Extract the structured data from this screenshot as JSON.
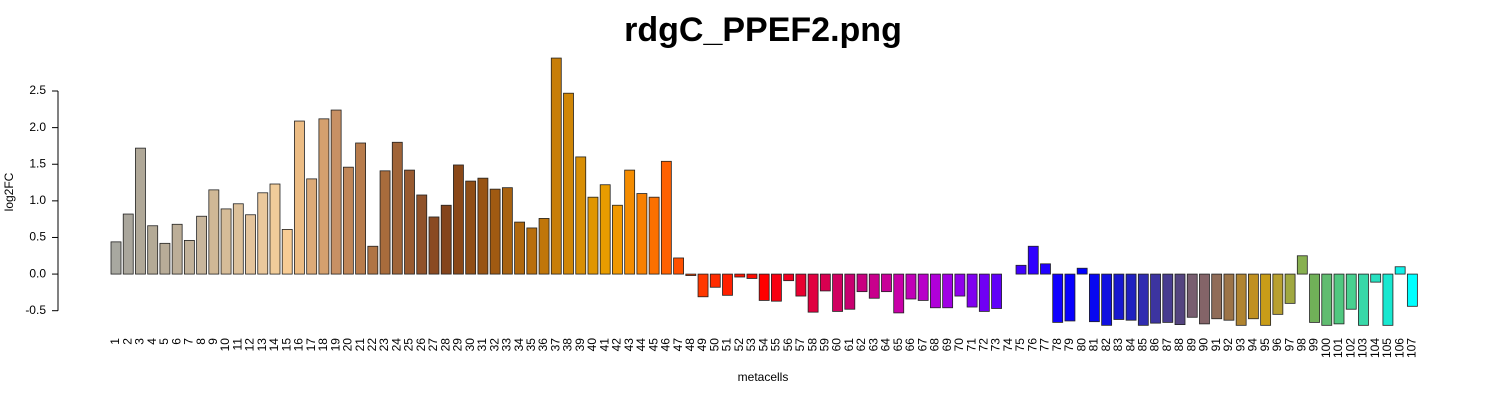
{
  "chart_data": {
    "type": "bar",
    "title": "rdgC_PPEF2.png",
    "y_label": "log2FC",
    "x_label": "metacells",
    "categories": [
      "1",
      "2",
      "3",
      "4",
      "5",
      "6",
      "7",
      "8",
      "9",
      "10",
      "11",
      "12",
      "13",
      "14",
      "15",
      "16",
      "17",
      "18",
      "19",
      "20",
      "21",
      "22",
      "23",
      "24",
      "25",
      "26",
      "27",
      "28",
      "29",
      "30",
      "31",
      "32",
      "33",
      "34",
      "35",
      "36",
      "37",
      "38",
      "39",
      "40",
      "41",
      "42",
      "43",
      "44",
      "45",
      "46",
      "47",
      "48",
      "49",
      "50",
      "51",
      "52",
      "53",
      "54",
      "55",
      "56",
      "57",
      "58",
      "59",
      "60",
      "61",
      "62",
      "63",
      "64",
      "65",
      "66",
      "67",
      "68",
      "69",
      "70",
      "71",
      "72",
      "73",
      "74",
      "75",
      "76",
      "77",
      "78",
      "79",
      "80",
      "81",
      "82",
      "83",
      "84",
      "85",
      "86",
      "87",
      "88",
      "89",
      "90",
      "91",
      "92",
      "93",
      "94",
      "95",
      "96",
      "97",
      "98",
      "99",
      "100",
      "101",
      "102",
      "103",
      "104",
      "105",
      "106",
      "107"
    ],
    "values": [
      0.44,
      0.82,
      1.72,
      0.66,
      0.42,
      0.68,
      0.46,
      0.79,
      1.15,
      0.89,
      0.96,
      0.81,
      1.11,
      1.23,
      0.61,
      2.09,
      1.3,
      2.12,
      2.24,
      1.46,
      1.79,
      0.38,
      1.41,
      1.8,
      1.42,
      1.08,
      0.78,
      0.94,
      1.49,
      1.27,
      1.31,
      1.16,
      1.18,
      0.71,
      0.63,
      0.76,
      2.95,
      2.47,
      1.6,
      1.05,
      1.22,
      0.94,
      1.42,
      1.1,
      1.05,
      1.54,
      0.22,
      -0.02,
      -0.31,
      -0.18,
      -0.29,
      -0.04,
      -0.06,
      -0.36,
      -0.37,
      -0.09,
      -0.3,
      -0.52,
      -0.23,
      -0.51,
      -0.48,
      -0.24,
      -0.33,
      -0.24,
      -0.53,
      -0.34,
      -0.36,
      -0.46,
      -0.46,
      -0.3,
      -0.45,
      -0.51,
      -0.47,
      0.0,
      0.12,
      0.38,
      0.14,
      -0.66,
      -0.64,
      0.08,
      -0.65,
      -0.7,
      -0.62,
      -0.63,
      -0.7,
      -0.67,
      -0.66,
      -0.69,
      -0.59,
      -0.68,
      -0.61,
      -0.63,
      -0.7,
      -0.61,
      -0.7,
      -0.55,
      -0.4,
      0.25,
      -0.66,
      -0.7,
      -0.68,
      -0.48,
      -0.7,
      -0.11,
      -0.7,
      0.1,
      -0.44
    ],
    "colors": [
      "#a8a8a0",
      "#aaa69c",
      "#b0a898",
      "#b4aa96",
      "#b8ac98",
      "#bcae98",
      "#c2b29a",
      "#c8b69c",
      "#d0b896",
      "#d6bc98",
      "#dcc09a",
      "#e4c49c",
      "#eac89c",
      "#f0cc9a",
      "#f8cc94",
      "#ecbc84",
      "#dcaa78",
      "#d4a06e",
      "#c89064",
      "#c08658",
      "#b87c4c",
      "#b07444",
      "#a86c3c",
      "#a06438",
      "#985a30",
      "#90522a",
      "#8a4a22",
      "#84441c",
      "#8a4818",
      "#904e16",
      "#985414",
      "#a05a12",
      "#a86210",
      "#b0680e",
      "#b86e0c",
      "#c0760a",
      "#c87e08",
      "#d08606",
      "#d88e04",
      "#e09602",
      "#e89c00",
      "#f09800",
      "#f48c00",
      "#f88000",
      "#fc7000",
      "#ff6000",
      "#ff5000",
      "#ff4400",
      "#ff3800",
      "#ff2c00",
      "#ff2000",
      "#ff1400",
      "#ff0a00",
      "#ff0000",
      "#f80010",
      "#f00020",
      "#e80030",
      "#e00040",
      "#d80050",
      "#d00060",
      "#c80070",
      "#c80080",
      "#c8008c",
      "#c80098",
      "#c800a8",
      "#c000b8",
      "#b800c8",
      "#b000d8",
      "#a000e4",
      "#9000ec",
      "#8000f0",
      "#7000f4",
      "#6000f8",
      "#5000fc",
      "#4000ff",
      "#3000ff",
      "#2000ff",
      "#1000ff",
      "#0800ff",
      "#0000ff",
      "#0808f0",
      "#1010e0",
      "#1818d0",
      "#2020c0",
      "#302cb0",
      "#3c34a0",
      "#483c90",
      "#544480",
      "#785e70",
      "#846468",
      "#906c58",
      "#9c7448",
      "#b08430",
      "#c09020",
      "#c89c18",
      "#b8a030",
      "#a0a840",
      "#88b050",
      "#70b058",
      "#60bc70",
      "#50c880",
      "#48d090",
      "#38d8a8",
      "#28e0c0",
      "#18e8d0",
      "#10f0e8",
      "#00ffff"
    ],
    "ylim": [
      -0.75,
      3.0
    ],
    "yticks": [
      -0.5,
      {
        "value": 0,
        "label": "0.0"
      },
      0.5,
      {
        "value": 1,
        "label": "1.0"
      },
      1.5,
      {
        "value": 2,
        "label": "2.0"
      },
      2.5
    ]
  }
}
